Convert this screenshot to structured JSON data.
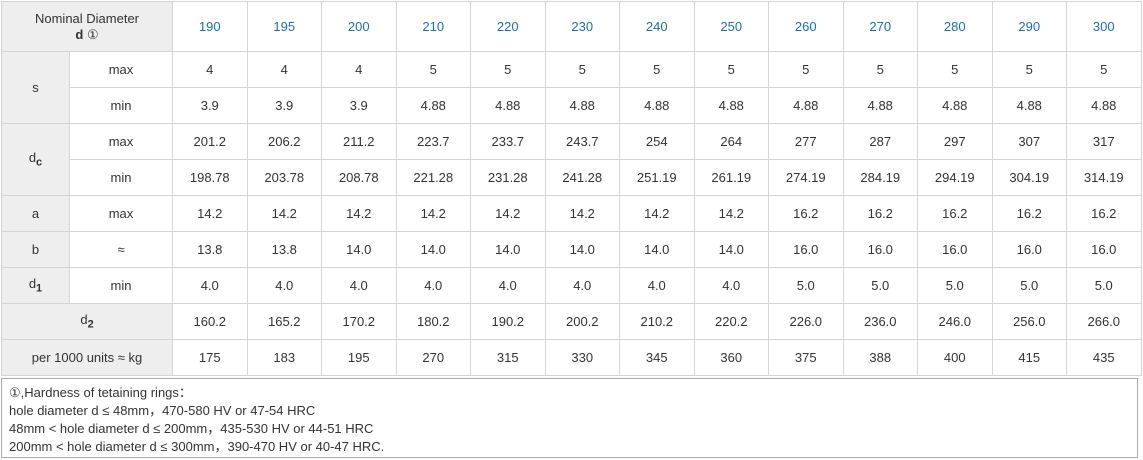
{
  "header": {
    "label_line1": "Nominal Diameter",
    "label_d": "d",
    "label_mark": "①",
    "diameters": [
      "190",
      "195",
      "200",
      "210",
      "220",
      "230",
      "240",
      "250",
      "260",
      "270",
      "280",
      "290",
      "300"
    ]
  },
  "rows": [
    {
      "param": "s",
      "qual": "max",
      "values": [
        "4",
        "4",
        "4",
        "5",
        "5",
        "5",
        "5",
        "5",
        "5",
        "5",
        "5",
        "5",
        "5"
      ]
    },
    {
      "qual": "min",
      "values": [
        "3.9",
        "3.9",
        "3.9",
        "4.88",
        "4.88",
        "4.88",
        "4.88",
        "4.88",
        "4.88",
        "4.88",
        "4.88",
        "4.88",
        "4.88"
      ]
    },
    {
      "param": "d",
      "param_sub": "c",
      "qual": "max",
      "values": [
        "201.2",
        "206.2",
        "211.2",
        "223.7",
        "233.7",
        "243.7",
        "254",
        "264",
        "277",
        "287",
        "297",
        "307",
        "317"
      ]
    },
    {
      "qual": "min",
      "values": [
        "198.78",
        "203.78",
        "208.78",
        "221.28",
        "231.28",
        "241.28",
        "251.19",
        "261.19",
        "274.19",
        "284.19",
        "294.19",
        "304.19",
        "314.19"
      ]
    },
    {
      "param": "a",
      "qual": "max",
      "values": [
        "14.2",
        "14.2",
        "14.2",
        "14.2",
        "14.2",
        "14.2",
        "14.2",
        "14.2",
        "16.2",
        "16.2",
        "16.2",
        "16.2",
        "16.2"
      ]
    },
    {
      "param": "b",
      "qual": "≈",
      "values": [
        "13.8",
        "13.8",
        "14.0",
        "14.0",
        "14.0",
        "14.0",
        "14.0",
        "14.0",
        "16.0",
        "16.0",
        "16.0",
        "16.0",
        "16.0"
      ]
    },
    {
      "param": "d",
      "param_sub": "1",
      "qual": "min",
      "values": [
        "4.0",
        "4.0",
        "4.0",
        "4.0",
        "4.0",
        "4.0",
        "4.0",
        "4.0",
        "5.0",
        "5.0",
        "5.0",
        "5.0",
        "5.0"
      ]
    },
    {
      "param": "d",
      "param_sub": "2",
      "values": [
        "160.2",
        "165.2",
        "170.2",
        "180.2",
        "190.2",
        "200.2",
        "210.2",
        "220.2",
        "226.0",
        "236.0",
        "246.0",
        "256.0",
        "266.0"
      ]
    },
    {
      "label": "per 1000 units ≈ kg",
      "values": [
        "175",
        "183",
        "195",
        "270",
        "315",
        "330",
        "345",
        "360",
        "375",
        "388",
        "400",
        "415",
        "435"
      ]
    }
  ],
  "notes": [
    "①,Hardness of tetaining rings：",
    "hole diameter d ≤ 48mm，470-580 HV or 47-54 HRC",
    "48mm < hole diameter d ≤ 200mm，435-530 HV or 44-51 HRC",
    "200mm < hole diameter d ≤ 300mm，390-470 HV or 40-47 HRC."
  ]
}
